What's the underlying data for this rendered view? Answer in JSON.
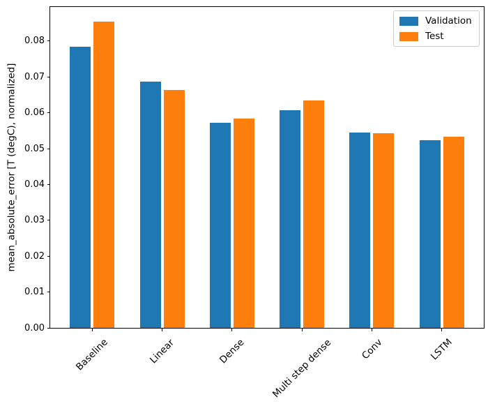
{
  "chart_data": {
    "type": "bar",
    "title": "",
    "categories": [
      "Baseline",
      "Linear",
      "Dense",
      "Multi step dense",
      "Conv",
      "LSTM"
    ],
    "series": [
      {
        "name": "Validation",
        "color": "#1f77b4",
        "values": [
          0.0785,
          0.0687,
          0.0572,
          0.0607,
          0.0545,
          0.0523
        ]
      },
      {
        "name": "Test",
        "color": "#ff7f0e",
        "values": [
          0.0854,
          0.0663,
          0.0583,
          0.0634,
          0.0543,
          0.0533
        ]
      }
    ],
    "xlabel": "",
    "ylabel": "mean_absolute_error [T (degC), normalized]",
    "ytick_labels": [
      "0.00",
      "0.01",
      "0.02",
      "0.03",
      "0.04",
      "0.05",
      "0.06",
      "0.07",
      "0.08"
    ],
    "ylim": [
      0,
      0.0895
    ],
    "xlim": [
      -0.602,
      5.602
    ],
    "bar_width": 0.3,
    "bar_offset": 0.17,
    "x_tick_rotation": 45,
    "grid": false,
    "legend": {
      "position": "upper right",
      "entries": [
        "Validation",
        "Test"
      ]
    }
  },
  "colors": {
    "background": "#ffffff",
    "axis": "#000000",
    "legend_border": "#cccccc",
    "validation": "#1f77b4",
    "test": "#ff7f0e"
  }
}
